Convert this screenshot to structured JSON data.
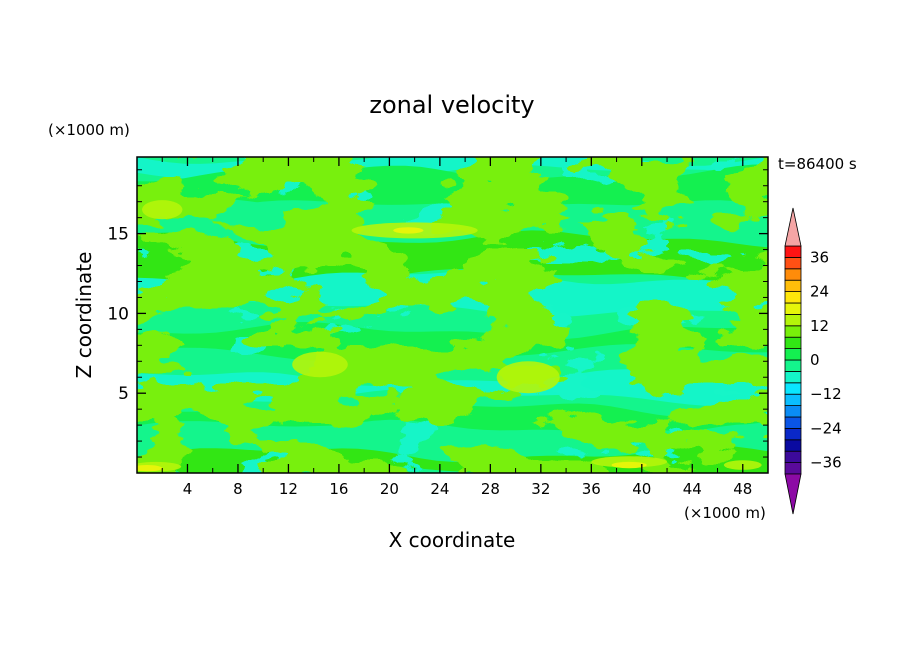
{
  "chart_data": {
    "type": "heatmap",
    "title": "zonal velocity",
    "time_label": "t=86400 s",
    "xlabel": "X coordinate",
    "ylabel": "Z coordinate",
    "x_unit": "(×1000 m)",
    "y_unit": "(×1000 m)",
    "xlim": [
      0,
      50
    ],
    "ylim": [
      0,
      19.8
    ],
    "x_ticks": [
      4,
      8,
      12,
      16,
      20,
      24,
      28,
      32,
      36,
      40,
      44,
      48
    ],
    "y_ticks": [
      5,
      10,
      15
    ],
    "colorbar": {
      "min": -40,
      "max": 40,
      "step": 4,
      "tick_values": [
        36,
        24,
        12,
        0,
        -12,
        -24,
        -36
      ],
      "tick_labels": [
        "36",
        "24",
        "12",
        "0",
        "−12",
        "−24",
        "−36"
      ],
      "extend": "both",
      "under_color": "#8c0aa5",
      "over_color": "#f5a5a5",
      "colors": [
        "#5a0a9b",
        "#3c0a9b",
        "#0a0aa0",
        "#0a28c8",
        "#0a55e6",
        "#0a8cf5",
        "#0abeff",
        "#0ae6ff",
        "#14f5c8",
        "#14f58c",
        "#14f050",
        "#32e614",
        "#78f00a",
        "#b4f50a",
        "#e6f50a",
        "#ffe60a",
        "#ffbe0a",
        "#ff8c0a",
        "#ff5014",
        "#ff1414"
      ]
    },
    "grid": false,
    "legend": "colorbar-right"
  }
}
